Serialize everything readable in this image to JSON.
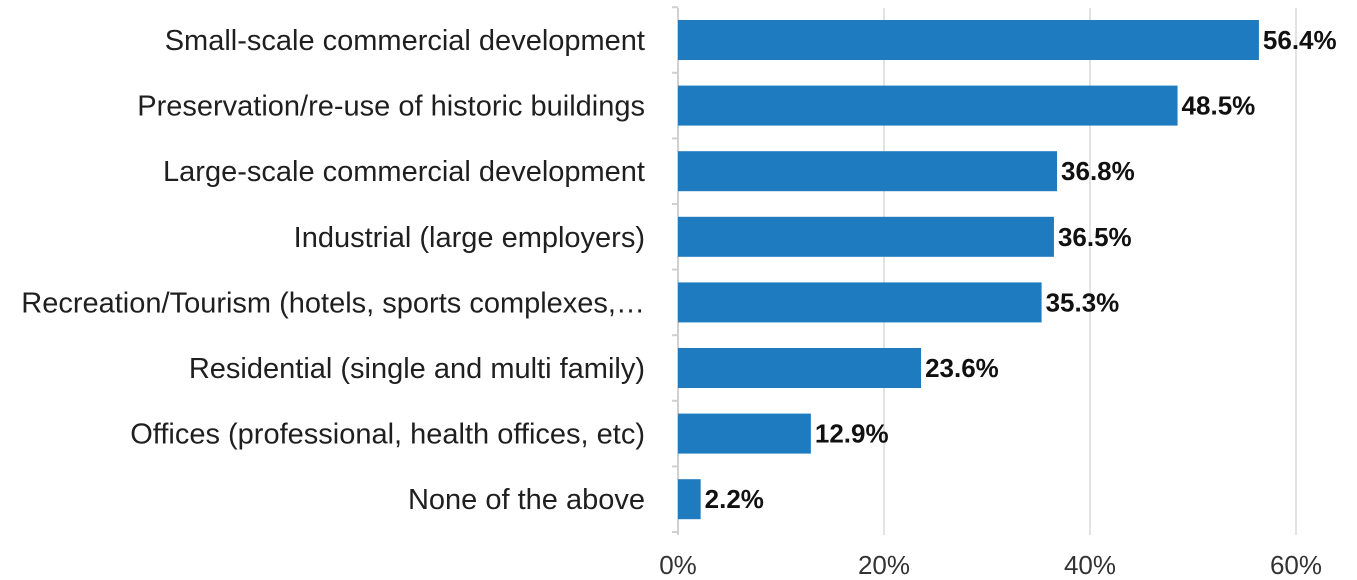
{
  "chart_data": {
    "type": "bar",
    "orientation": "horizontal",
    "categories": [
      "Small-scale commercial development",
      "Preservation/re-use of historic buildings",
      "Large-scale commercial development",
      "Industrial (large employers)",
      "Recreation/Tourism (hotels, sports complexes,…",
      "Residential (single and multi family)",
      "Offices (professional, health offices, etc)",
      "None of the above"
    ],
    "values": [
      56.4,
      48.5,
      36.8,
      36.5,
      35.3,
      23.6,
      12.9,
      2.2
    ],
    "value_labels": [
      "56.4%",
      "48.5%",
      "36.8%",
      "36.5%",
      "35.3%",
      "23.6%",
      "12.9%",
      "2.2%"
    ],
    "xlim": [
      0,
      60
    ],
    "x_ticks": [
      0,
      20,
      40,
      60
    ],
    "x_tick_labels": [
      "0%",
      "20%",
      "40%",
      "60%"
    ],
    "grid": true,
    "bar_color": "#1f7bbf",
    "title": "",
    "xlabel": "",
    "ylabel": ""
  }
}
